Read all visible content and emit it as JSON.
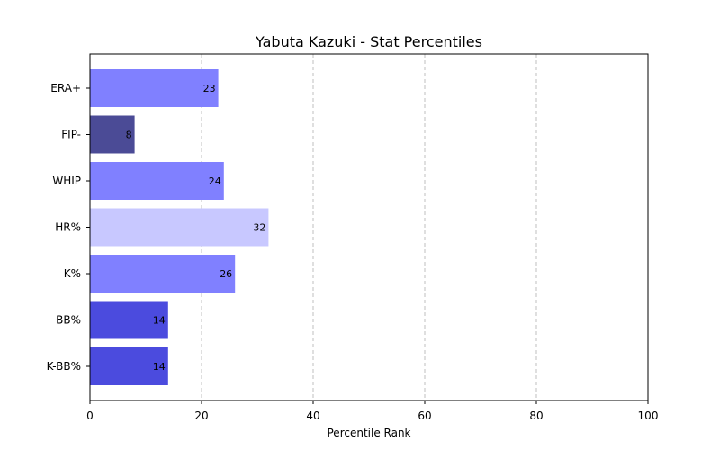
{
  "chart_data": {
    "type": "bar",
    "orientation": "horizontal",
    "title": "Yabuta Kazuki - Stat Percentiles",
    "xlabel": "Percentile Rank",
    "ylabel": "",
    "xlim": [
      0,
      100
    ],
    "xticks": [
      0,
      20,
      40,
      60,
      80,
      100
    ],
    "grid": "x-dashed",
    "categories": [
      "ERA+",
      "FIP-",
      "WHIP",
      "HR%",
      "K%",
      "BB%",
      "K-BB%"
    ],
    "values": [
      23,
      8,
      24,
      32,
      26,
      14,
      14
    ],
    "colors": [
      "#8080ff",
      "#4b4b96",
      "#8080ff",
      "#c8c8ff",
      "#8080ff",
      "#4b4bde",
      "#4b4bde"
    ]
  }
}
